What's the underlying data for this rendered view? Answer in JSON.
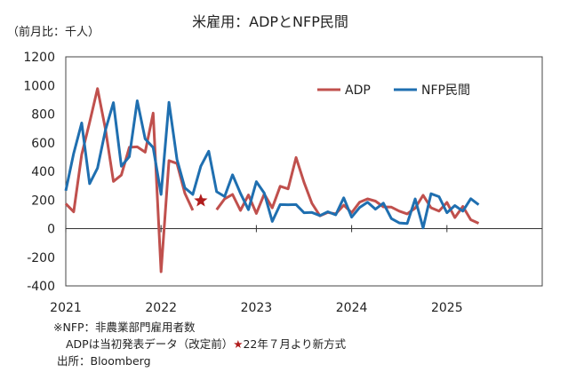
{
  "chart_data": {
    "type": "line",
    "title": "米雇用：ADPとNFP民間",
    "unit_label": "（前月比：千人）",
    "ylim": [
      -400,
      1200
    ],
    "y_ticks": [
      1200,
      1000,
      800,
      600,
      400,
      200,
      0,
      -200,
      -400
    ],
    "x_tick_labels": [
      "2021",
      "2022",
      "2023",
      "2024",
      "2025"
    ],
    "x_tick_positions": [
      2021,
      2022,
      2023,
      2024,
      2025
    ],
    "xlim": [
      2021,
      2026
    ],
    "legend_position": "top-right",
    "grid": false,
    "series": [
      {
        "name": "ADP",
        "color": "#c0504d",
        "x": [
          2021.0,
          2021.083,
          2021.167,
          2021.25,
          2021.333,
          2021.417,
          2021.5,
          2021.583,
          2021.667,
          2021.75,
          2021.833,
          2021.917,
          2022.0,
          2022.083,
          2022.167,
          2022.25,
          2022.333,
          2022.417,
          2022.5,
          2022.583,
          2022.667,
          2022.75,
          2022.833,
          2022.917,
          2023.0,
          2023.083,
          2023.167,
          2023.25,
          2023.333,
          2023.417,
          2023.5,
          2023.583,
          2023.667,
          2023.75,
          2023.833,
          2023.917,
          2024.0,
          2024.083,
          2024.167,
          2024.25,
          2024.333,
          2024.417,
          2024.5,
          2024.583,
          2024.667,
          2024.75,
          2024.833,
          2024.917,
          2025.0,
          2025.083,
          2025.167,
          2025.25,
          2025.333
        ],
        "values": [
          174,
          117,
          517,
          742,
          978,
          692,
          330,
          374,
          568,
          571,
          534,
          807,
          -301,
          475,
          455,
          247,
          128,
          null,
          null,
          132,
          208,
          239,
          127,
          235,
          106,
          242,
          145,
          296,
          278,
          497,
          324,
          177,
          89,
          113,
          103,
          164,
          111,
          184,
          208,
          192,
          152,
          150,
          122,
          103,
          143,
          233,
          146,
          122,
          183,
          77,
          155,
          62,
          37
        ]
      },
      {
        "name": "NFP民間",
        "color": "#1f6fb0",
        "x": [
          2021.0,
          2021.083,
          2021.167,
          2021.25,
          2021.333,
          2021.417,
          2021.5,
          2021.583,
          2021.667,
          2021.75,
          2021.833,
          2021.917,
          2022.0,
          2022.083,
          2022.167,
          2022.25,
          2022.333,
          2022.417,
          2022.5,
          2022.583,
          2022.667,
          2022.75,
          2022.833,
          2022.917,
          2023.0,
          2023.083,
          2023.167,
          2023.25,
          2023.333,
          2023.417,
          2023.5,
          2023.583,
          2023.667,
          2023.75,
          2023.833,
          2023.917,
          2024.0,
          2024.083,
          2024.167,
          2024.25,
          2024.333,
          2024.417,
          2024.5,
          2024.583,
          2024.667,
          2024.75,
          2024.833,
          2024.917,
          2025.0,
          2025.083,
          2025.167,
          2025.25,
          2025.333
        ],
        "values": [
          265,
          526,
          738,
          314,
          423,
          690,
          880,
          436,
          503,
          893,
          627,
          566,
          239,
          882,
          484,
          284,
          239,
          436,
          541,
          258,
          224,
          376,
          247,
          132,
          328,
          248,
          50,
          168,
          167,
          168,
          111,
          113,
          91,
          118,
          96,
          215,
          80,
          147,
          184,
          136,
          178,
          70,
          40,
          36,
          208,
          5,
          244,
          223,
          111,
          161,
          122,
          209,
          167
        ]
      }
    ],
    "annotation": {
      "marker": "star",
      "color": "#b01c1c",
      "x": 2022.417,
      "y": 195
    }
  },
  "notes": {
    "line1": "※NFP：非農業部門雇用者数",
    "line2_a": "ADPは当初発表データ（改定前）",
    "line2_star": "★",
    "line2_b": "22年７月より新方式",
    "line3": "出所：Bloomberg"
  }
}
